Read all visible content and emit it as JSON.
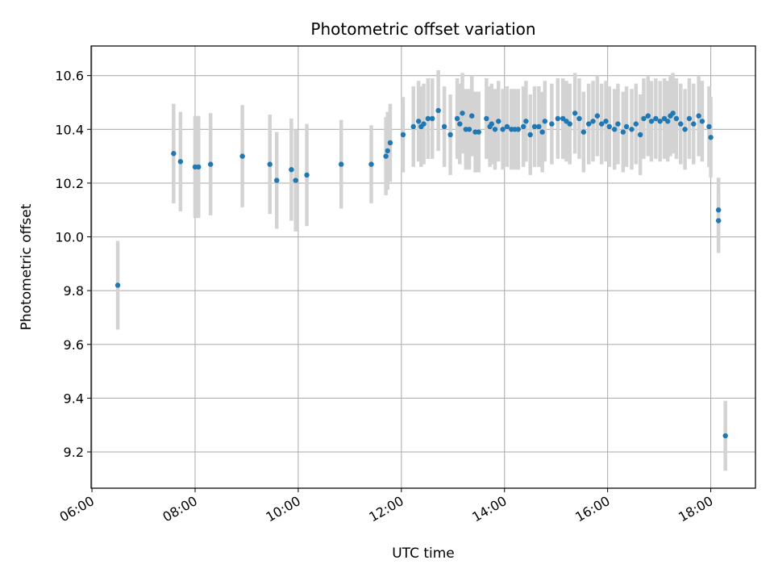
{
  "chart_data": {
    "type": "scatter",
    "title": "Photometric offset variation",
    "xlabel": "UTC time",
    "ylabel": "Photometric offset",
    "xlim": [
      "05:59",
      "18:52"
    ],
    "ylim": [
      9.065,
      10.71
    ],
    "x_ticks": [
      "06:00",
      "08:00",
      "10:00",
      "12:00",
      "14:00",
      "16:00",
      "18:00"
    ],
    "y_ticks": [
      "9.2",
      "9.4",
      "9.6",
      "9.8",
      "10.0",
      "10.2",
      "10.4",
      "10.6"
    ],
    "grid": true,
    "colors": {
      "points": "#1f77b4",
      "errorbars": "#d3d3d3",
      "grid": "#b0b0b0",
      "axes": "#000000"
    },
    "series": [
      {
        "x": [
          "06:30",
          "07:35",
          "07:43",
          "08:00",
          "08:04",
          "08:18",
          "08:55",
          "09:27",
          "09:35",
          "09:52",
          "09:57",
          "10:10",
          "10:50",
          "11:25",
          "11:42",
          "11:44",
          "11:47",
          "12:02",
          "12:14",
          "12:20",
          "12:23",
          "12:26",
          "12:31",
          "12:36",
          "12:43",
          "12:50",
          "12:57",
          "13:05",
          "13:08",
          "13:11",
          "13:15",
          "13:19",
          "13:22",
          "13:26",
          "13:30",
          "13:39",
          "13:43",
          "13:45",
          "13:49",
          "13:53",
          "13:58",
          "14:03",
          "14:08",
          "14:12",
          "14:16",
          "14:22",
          "14:25",
          "14:30",
          "14:35",
          "14:40",
          "14:44",
          "14:47",
          "14:55",
          "15:02",
          "15:08",
          "15:12",
          "15:16",
          "15:22",
          "15:27",
          "15:32",
          "15:38",
          "15:43",
          "15:48",
          "15:53",
          "15:58",
          "16:02",
          "16:08",
          "16:12",
          "16:18",
          "16:22",
          "16:28",
          "16:33",
          "16:38",
          "16:42",
          "16:47",
          "16:51",
          "16:56",
          "17:01",
          "17:06",
          "17:10",
          "17:13",
          "17:16",
          "17:20",
          "17:25",
          "17:30",
          "17:35",
          "17:40",
          "17:46",
          "17:50",
          "17:58",
          "18:00",
          "18:09",
          "18:09",
          "18:17"
        ],
        "y": [
          9.82,
          10.31,
          10.28,
          10.26,
          10.26,
          10.27,
          10.3,
          10.27,
          10.21,
          10.25,
          10.21,
          10.23,
          10.27,
          10.27,
          10.3,
          10.32,
          10.35,
          10.38,
          10.41,
          10.43,
          10.41,
          10.42,
          10.44,
          10.44,
          10.47,
          10.41,
          10.38,
          10.44,
          10.42,
          10.46,
          10.4,
          10.4,
          10.45,
          10.39,
          10.39,
          10.44,
          10.41,
          10.42,
          10.4,
          10.43,
          10.4,
          10.41,
          10.4,
          10.4,
          10.4,
          10.41,
          10.43,
          10.38,
          10.41,
          10.41,
          10.39,
          10.43,
          10.42,
          10.44,
          10.44,
          10.43,
          10.42,
          10.46,
          10.44,
          10.39,
          10.42,
          10.43,
          10.45,
          10.42,
          10.43,
          10.41,
          10.4,
          10.42,
          10.39,
          10.41,
          10.4,
          10.42,
          10.38,
          10.44,
          10.45,
          10.43,
          10.44,
          10.43,
          10.44,
          10.43,
          10.45,
          10.46,
          10.44,
          10.42,
          10.4,
          10.44,
          10.42,
          10.45,
          10.43,
          10.41,
          10.37,
          10.1,
          10.06,
          9.26
        ],
        "err": [
          0.165,
          0.185,
          0.185,
          0.19,
          0.19,
          0.19,
          0.19,
          0.185,
          0.18,
          0.19,
          0.19,
          0.19,
          0.165,
          0.145,
          0.145,
          0.145,
          0.145,
          0.14,
          0.15,
          0.15,
          0.15,
          0.15,
          0.15,
          0.15,
          0.15,
          0.15,
          0.15,
          0.15,
          0.15,
          0.15,
          0.15,
          0.15,
          0.15,
          0.15,
          0.15,
          0.15,
          0.15,
          0.15,
          0.15,
          0.15,
          0.15,
          0.15,
          0.15,
          0.15,
          0.15,
          0.15,
          0.15,
          0.15,
          0.15,
          0.15,
          0.15,
          0.15,
          0.15,
          0.15,
          0.15,
          0.15,
          0.15,
          0.15,
          0.15,
          0.15,
          0.15,
          0.15,
          0.15,
          0.15,
          0.15,
          0.15,
          0.15,
          0.15,
          0.15,
          0.15,
          0.15,
          0.15,
          0.15,
          0.15,
          0.15,
          0.15,
          0.15,
          0.15,
          0.15,
          0.15,
          0.15,
          0.15,
          0.15,
          0.15,
          0.15,
          0.15,
          0.15,
          0.15,
          0.15,
          0.15,
          0.15,
          0.12,
          0.12,
          0.13
        ]
      }
    ]
  }
}
